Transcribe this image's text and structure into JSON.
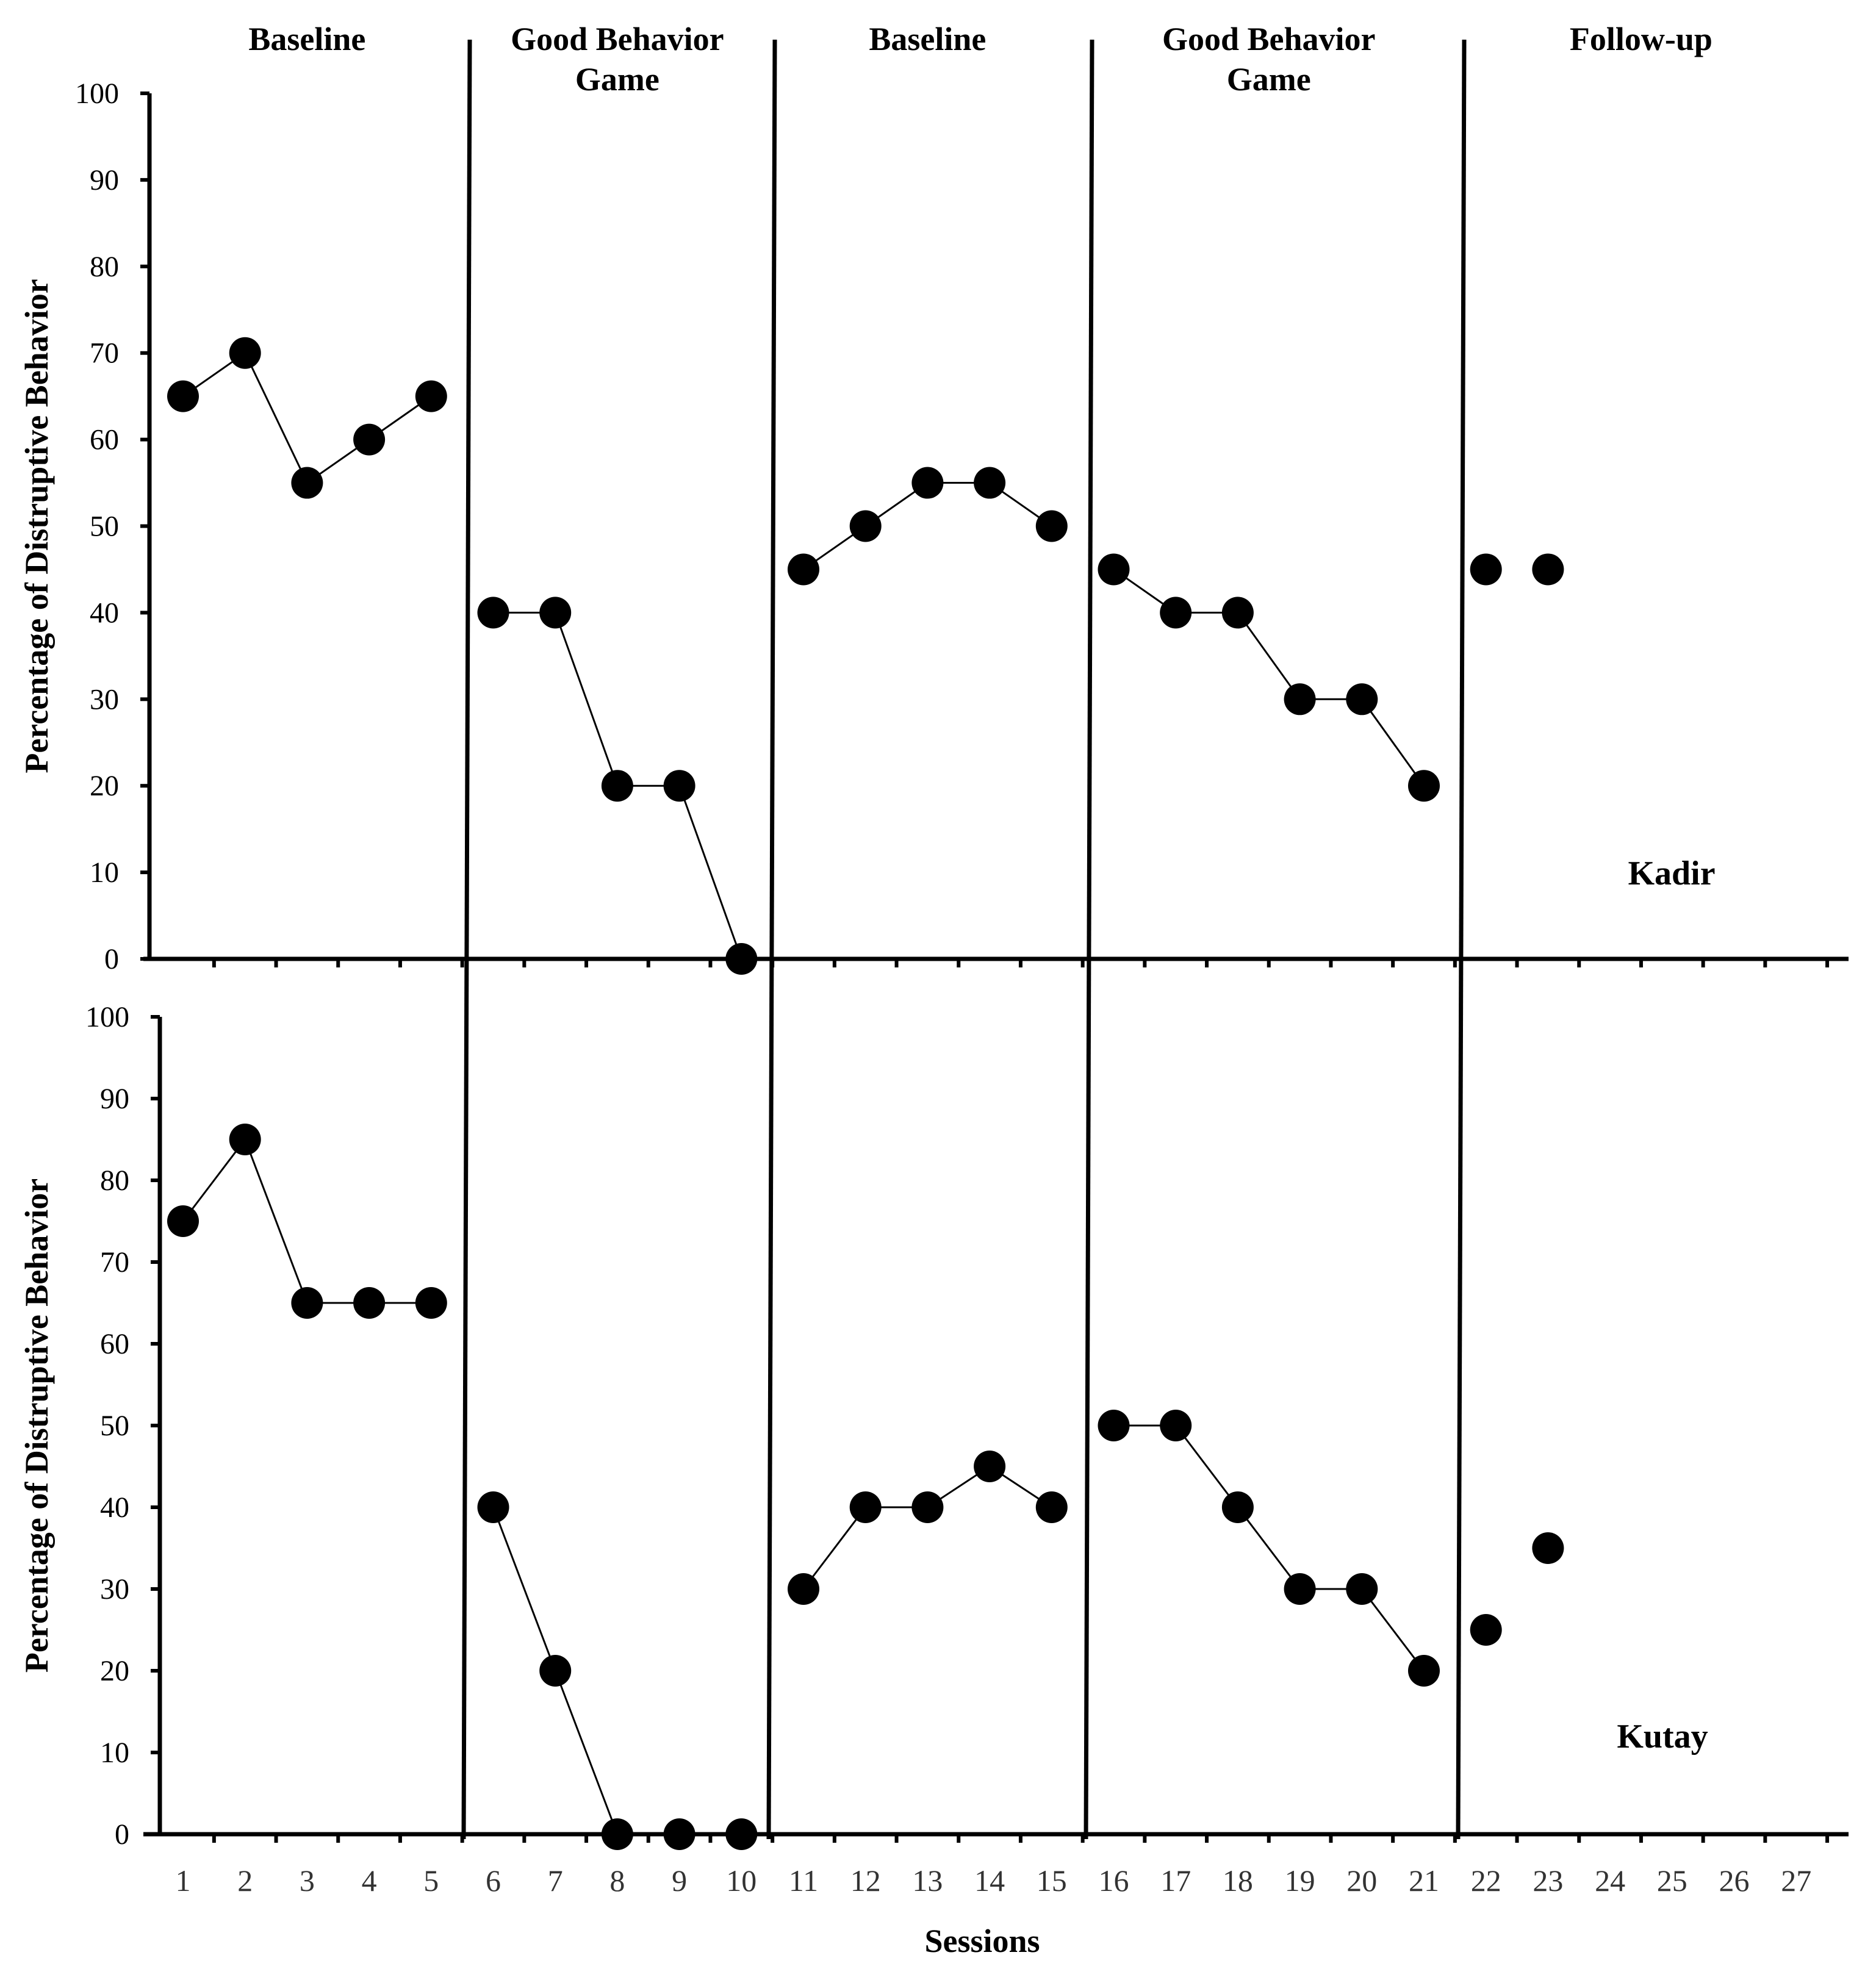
{
  "chart_data": {
    "type": "line",
    "title": "",
    "xlabel": "Sessions",
    "ylabel": "Percentage of Distruptive Behavior",
    "ylim": [
      0,
      100
    ],
    "yticks": [
      "0",
      "10",
      "20",
      "30",
      "40",
      "50",
      "60",
      "70",
      "80",
      "90",
      "100"
    ],
    "x_categories": [
      "1",
      "2",
      "3",
      "4",
      "5",
      "6",
      "7",
      "8",
      "9",
      "10",
      "11",
      "12",
      "13",
      "14",
      "15",
      "16",
      "17",
      "18",
      "19",
      "20",
      "21",
      "22",
      "23",
      "24",
      "25",
      "26",
      "27"
    ],
    "phases": [
      {
        "label_lines": [
          "Baseline"
        ],
        "sessions": [
          1,
          5
        ]
      },
      {
        "label_lines": [
          "Good Behavior",
          "Game"
        ],
        "sessions": [
          6,
          10
        ]
      },
      {
        "label_lines": [
          "Baseline"
        ],
        "sessions": [
          11,
          15
        ]
      },
      {
        "label_lines": [
          "Good Behavior",
          "Game"
        ],
        "sessions": [
          16,
          21
        ]
      },
      {
        "label_lines": [
          "Follow-up"
        ],
        "sessions": [
          22,
          27
        ]
      }
    ],
    "panels": [
      {
        "name": "Kadir",
        "series": [
          {
            "phase": 1,
            "x": [
              1,
              2,
              3,
              4,
              5
            ],
            "y": [
              65,
              70,
              55,
              60,
              65
            ]
          },
          {
            "phase": 2,
            "x": [
              6,
              7,
              8,
              9,
              10
            ],
            "y": [
              40,
              40,
              20,
              20,
              0
            ]
          },
          {
            "phase": 3,
            "x": [
              11,
              12,
              13,
              14,
              15
            ],
            "y": [
              45,
              50,
              55,
              55,
              50
            ]
          },
          {
            "phase": 4,
            "x": [
              16,
              17,
              18,
              19,
              20,
              21
            ],
            "y": [
              45,
              40,
              40,
              30,
              30,
              20
            ]
          },
          {
            "phase": 5,
            "x": [
              22,
              23
            ],
            "y": [
              45,
              45
            ],
            "connected": false
          }
        ]
      },
      {
        "name": "Kutay",
        "series": [
          {
            "phase": 1,
            "x": [
              1,
              2,
              3,
              4,
              5
            ],
            "y": [
              75,
              85,
              65,
              65,
              65
            ]
          },
          {
            "phase": 2,
            "x": [
              6,
              7,
              8,
              9,
              10
            ],
            "y": [
              40,
              20,
              0,
              0,
              0
            ]
          },
          {
            "phase": 3,
            "x": [
              11,
              12,
              13,
              14,
              15
            ],
            "y": [
              30,
              40,
              40,
              45,
              40
            ]
          },
          {
            "phase": 4,
            "x": [
              16,
              17,
              18,
              19,
              20,
              21
            ],
            "y": [
              50,
              50,
              40,
              30,
              30,
              20
            ]
          },
          {
            "phase": 5,
            "x": [
              22,
              23
            ],
            "y": [
              25,
              35
            ],
            "connected": false
          }
        ]
      }
    ]
  }
}
